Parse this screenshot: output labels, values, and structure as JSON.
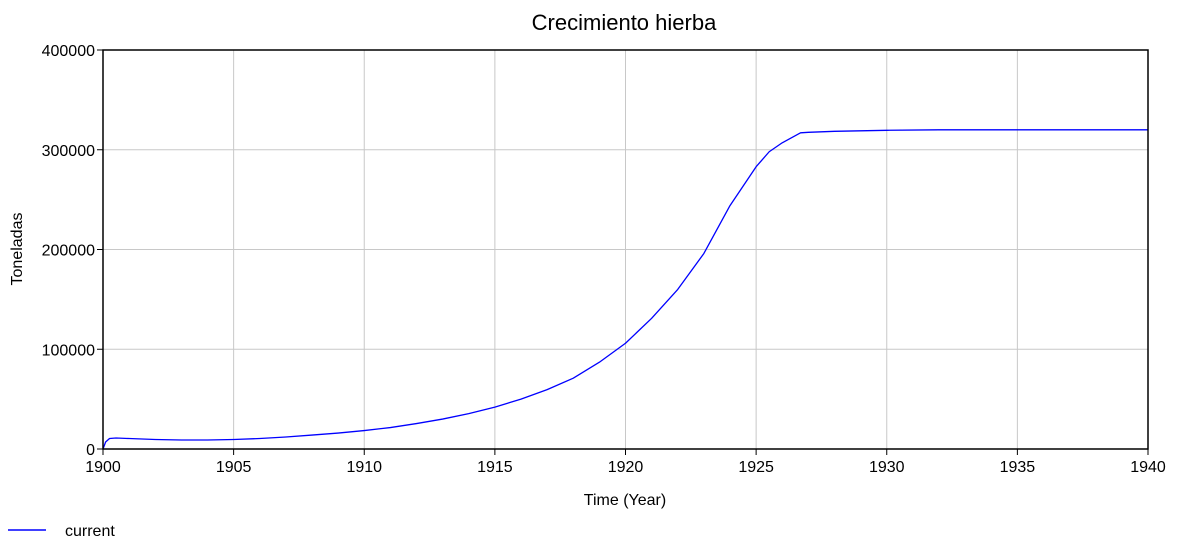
{
  "chart_data": {
    "type": "line",
    "title": "Crecimiento hierba",
    "xlabel": "Time (Year)",
    "ylabel": "Toneladas",
    "xlim": [
      1900,
      1940
    ],
    "ylim": [
      0,
      400000
    ],
    "x_ticks": [
      1900,
      1905,
      1910,
      1915,
      1920,
      1925,
      1930,
      1935,
      1940
    ],
    "y_ticks": [
      0,
      100000,
      200000,
      300000,
      400000
    ],
    "x_tick_labels": [
      "1900",
      "1905",
      "1910",
      "1915",
      "1920",
      "1925",
      "1930",
      "1935",
      "1940"
    ],
    "y_tick_labels": [
      "0",
      "100000",
      "200000",
      "300000",
      "400000"
    ],
    "grid": true,
    "legend_position": "bottom-left",
    "series": [
      {
        "name": "current",
        "color": "#0000ff",
        "x": [
          1900,
          1900.1,
          1900.25,
          1900.5,
          1901,
          1902,
          1903,
          1904,
          1905,
          1906,
          1907,
          1908,
          1909,
          1910,
          1911,
          1912,
          1913,
          1914,
          1915,
          1916,
          1917,
          1918,
          1919,
          1920,
          1921,
          1922,
          1923,
          1924,
          1925,
          1925.5,
          1926,
          1926.7,
          1927,
          1928,
          1929,
          1930,
          1932,
          1935,
          1940
        ],
        "y": [
          0,
          7000,
          10500,
          11000,
          10500,
          9500,
          9000,
          9000,
          9500,
          10500,
          12000,
          14000,
          16000,
          18500,
          21500,
          25500,
          30000,
          35500,
          42000,
          50000,
          59500,
          71000,
          87000,
          106000,
          131000,
          160000,
          196000,
          244000,
          283000,
          298000,
          307000,
          317000,
          317500,
          318500,
          319000,
          319500,
          320000,
          320000,
          320000
        ]
      }
    ]
  }
}
